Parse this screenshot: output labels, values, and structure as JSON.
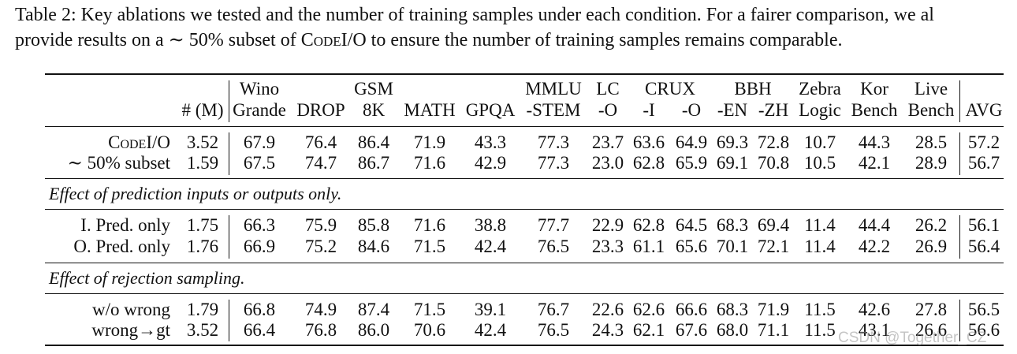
{
  "caption": {
    "line1": "Table 2: Key ablations we tested and the number of training samples under each condition. For a fairer comparison, we al",
    "line2_pre": "provide results on a ∼ 50% subset of ",
    "line2_sc": "CodeI/O",
    "line2_post": " to ensure the number of training samples remains comparable."
  },
  "columns": [
    {
      "key": "size",
      "l1": "",
      "l2": "# (M)"
    },
    {
      "key": "wino",
      "l1": "Wino",
      "l2": "Grande"
    },
    {
      "key": "drop",
      "l1": "",
      "l2": "DROP"
    },
    {
      "key": "gsm",
      "l1": "GSM",
      "l2": "8K"
    },
    {
      "key": "math",
      "l1": "",
      "l2": "MATH"
    },
    {
      "key": "gpqa",
      "l1": "",
      "l2": "GPQA"
    },
    {
      "key": "mmlu",
      "l1": "MMLU",
      "l2": "-STEM"
    },
    {
      "key": "lco",
      "l1": "LC",
      "l2": "-O"
    },
    {
      "key": "cruxi",
      "l1": "",
      "l2": "-I"
    },
    {
      "key": "cruxo",
      "l1": "",
      "l2": "-O"
    },
    {
      "key": "bbhen",
      "l1": "",
      "l2": "-EN"
    },
    {
      "key": "bbhzh",
      "l1": "",
      "l2": "-ZH"
    },
    {
      "key": "zebra",
      "l1": "Zebra",
      "l2": "Logic"
    },
    {
      "key": "kor",
      "l1": "Kor",
      "l2": "Bench"
    },
    {
      "key": "live",
      "l1": "Live",
      "l2": "Bench"
    },
    {
      "key": "avg",
      "l1": "",
      "l2": "AVG"
    }
  ],
  "group_headers": {
    "crux": "CRUX",
    "bbh": "BBH"
  },
  "sections": {
    "s1": "Effect of prediction inputs or outputs only.",
    "s2": "Effect of rejection sampling."
  },
  "rows": [
    {
      "label": "CodeI/O",
      "small_caps": true,
      "values": [
        "3.52",
        "67.9",
        "76.4",
        "86.4",
        "71.9",
        "43.3",
        "77.3",
        "23.7",
        "63.6",
        "64.9",
        "69.3",
        "72.8",
        "10.7",
        "44.3",
        "28.5",
        "57.2"
      ]
    },
    {
      "label": "∼ 50% subset",
      "small_caps": false,
      "values": [
        "1.59",
        "67.5",
        "74.7",
        "86.7",
        "71.6",
        "42.9",
        "77.3",
        "23.0",
        "62.8",
        "65.9",
        "69.1",
        "70.8",
        "10.5",
        "42.1",
        "28.9",
        "56.7"
      ]
    },
    {
      "label": "I. Pred. only",
      "small_caps": false,
      "values": [
        "1.75",
        "66.3",
        "75.9",
        "85.8",
        "71.6",
        "38.8",
        "77.7",
        "22.9",
        "62.8",
        "64.5",
        "68.3",
        "69.4",
        "11.4",
        "44.4",
        "26.2",
        "56.1"
      ]
    },
    {
      "label": "O. Pred. only",
      "small_caps": false,
      "values": [
        "1.76",
        "66.9",
        "75.2",
        "84.6",
        "71.5",
        "42.4",
        "76.5",
        "23.3",
        "61.1",
        "65.6",
        "70.1",
        "72.1",
        "11.4",
        "42.2",
        "26.9",
        "56.4"
      ]
    },
    {
      "label": "w/o wrong",
      "small_caps": false,
      "values": [
        "1.79",
        "66.8",
        "74.9",
        "87.4",
        "71.5",
        "39.1",
        "76.7",
        "22.6",
        "62.6",
        "66.6",
        "68.3",
        "71.9",
        "11.5",
        "42.6",
        "27.8",
        "56.5"
      ]
    },
    {
      "label": "wrong→gt",
      "small_caps": false,
      "values": [
        "3.52",
        "66.4",
        "76.8",
        "86.0",
        "70.6",
        "42.4",
        "76.5",
        "24.3",
        "62.1",
        "67.6",
        "68.0",
        "71.1",
        "11.5",
        "43.1",
        "26.6",
        "56.6"
      ]
    }
  ],
  "watermark": "CSDN @Together_CZ"
}
